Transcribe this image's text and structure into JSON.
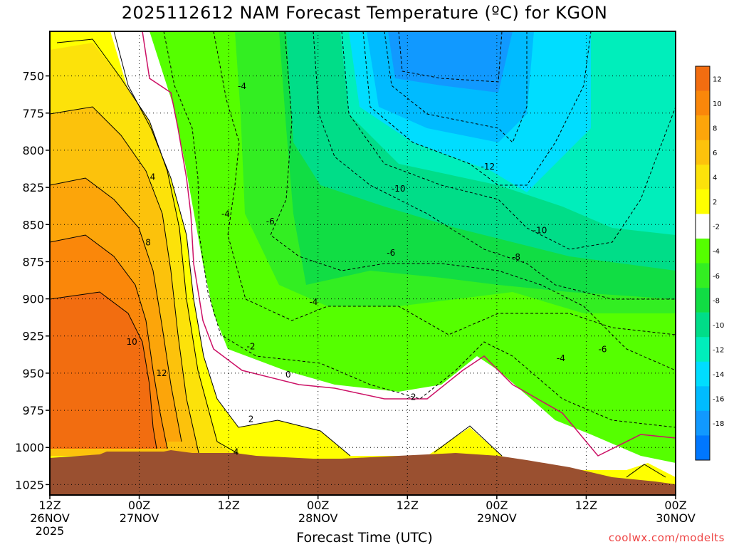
{
  "chart_data": {
    "type": "heatmap",
    "title": "2025112612 NAM Forecast Temperature (ºC) for KGON",
    "xlabel": "Forecast Time (UTC)",
    "ylabel": "",
    "ylim": [
      1032,
      720
    ],
    "xlim_hours": [
      0,
      84
    ],
    "x_ticks": [
      {
        "hour": 0,
        "label": "12Z",
        "label2": "26NOV",
        "label3": "2025"
      },
      {
        "hour": 12,
        "label": "00Z",
        "label2": "27NOV",
        "label3": ""
      },
      {
        "hour": 24,
        "label": "12Z",
        "label2": "",
        "label3": ""
      },
      {
        "hour": 36,
        "label": "00Z",
        "label2": "28NOV",
        "label3": ""
      },
      {
        "hour": 48,
        "label": "12Z",
        "label2": "",
        "label3": ""
      },
      {
        "hour": 60,
        "label": "00Z",
        "label2": "29NOV",
        "label3": ""
      },
      {
        "hour": 72,
        "label": "12Z",
        "label2": "",
        "label3": ""
      },
      {
        "hour": 84,
        "label": "00Z",
        "label2": "30NOV",
        "label3": ""
      }
    ],
    "y_ticks": [
      750,
      775,
      800,
      825,
      850,
      875,
      900,
      925,
      950,
      975,
      1000,
      1025
    ],
    "grid": true,
    "colorbar": {
      "placement": "right",
      "labels": [
        "12",
        "10",
        "8",
        "6",
        "4",
        "2",
        "-2",
        "-4",
        "-6",
        "-8",
        "-10",
        "-12",
        "-14",
        "-16",
        "-18"
      ],
      "colors": [
        "#f26d10",
        "#fa870a",
        "#fca50a",
        "#fcc20c",
        "#fce20a",
        "#ffff00",
        "#ffffff",
        "#55ff00",
        "#33ee22",
        "#11dd44",
        "#00dd88",
        "#00eebb",
        "#00ddff",
        "#00bbff",
        "#1199ff",
        "#0077ff"
      ]
    },
    "contour_labels": [
      {
        "text": "-4",
        "hour": 25.8,
        "p": 757
      },
      {
        "text": "-4",
        "hour": 23.6,
        "p": 843
      },
      {
        "text": "-6",
        "hour": 29.6,
        "p": 848
      },
      {
        "text": "4",
        "hour": 13.8,
        "p": 818
      },
      {
        "text": "8",
        "hour": 13.2,
        "p": 862
      },
      {
        "text": "10",
        "hour": 11.0,
        "p": 929
      },
      {
        "text": "12",
        "hour": 15.0,
        "p": 950
      },
      {
        "text": "-4",
        "hour": 35.4,
        "p": 902
      },
      {
        "text": "-2",
        "hour": 27.0,
        "p": 932
      },
      {
        "text": "0",
        "hour": 32.0,
        "p": 951
      },
      {
        "text": "2",
        "hour": 27.0,
        "p": 981
      },
      {
        "text": "4",
        "hour": 25.0,
        "p": 1003
      },
      {
        "text": "-10",
        "hour": 46.8,
        "p": 826
      },
      {
        "text": "-6",
        "hour": 45.8,
        "p": 869
      },
      {
        "text": "-12",
        "hour": 58.8,
        "p": 811
      },
      {
        "text": "-10",
        "hour": 65.8,
        "p": 854
      },
      {
        "text": "-8",
        "hour": 62.6,
        "p": 872
      },
      {
        "text": "-2",
        "hour": 48.6,
        "p": 966
      },
      {
        "text": "-4",
        "hour": 68.6,
        "p": 940
      },
      {
        "text": "-6",
        "hour": 74.2,
        "p": 934
      }
    ],
    "credit": "coolwx.com/modelts"
  },
  "colors": {
    "ground": "#9a5030",
    "contour_zero": "#cc1166"
  }
}
